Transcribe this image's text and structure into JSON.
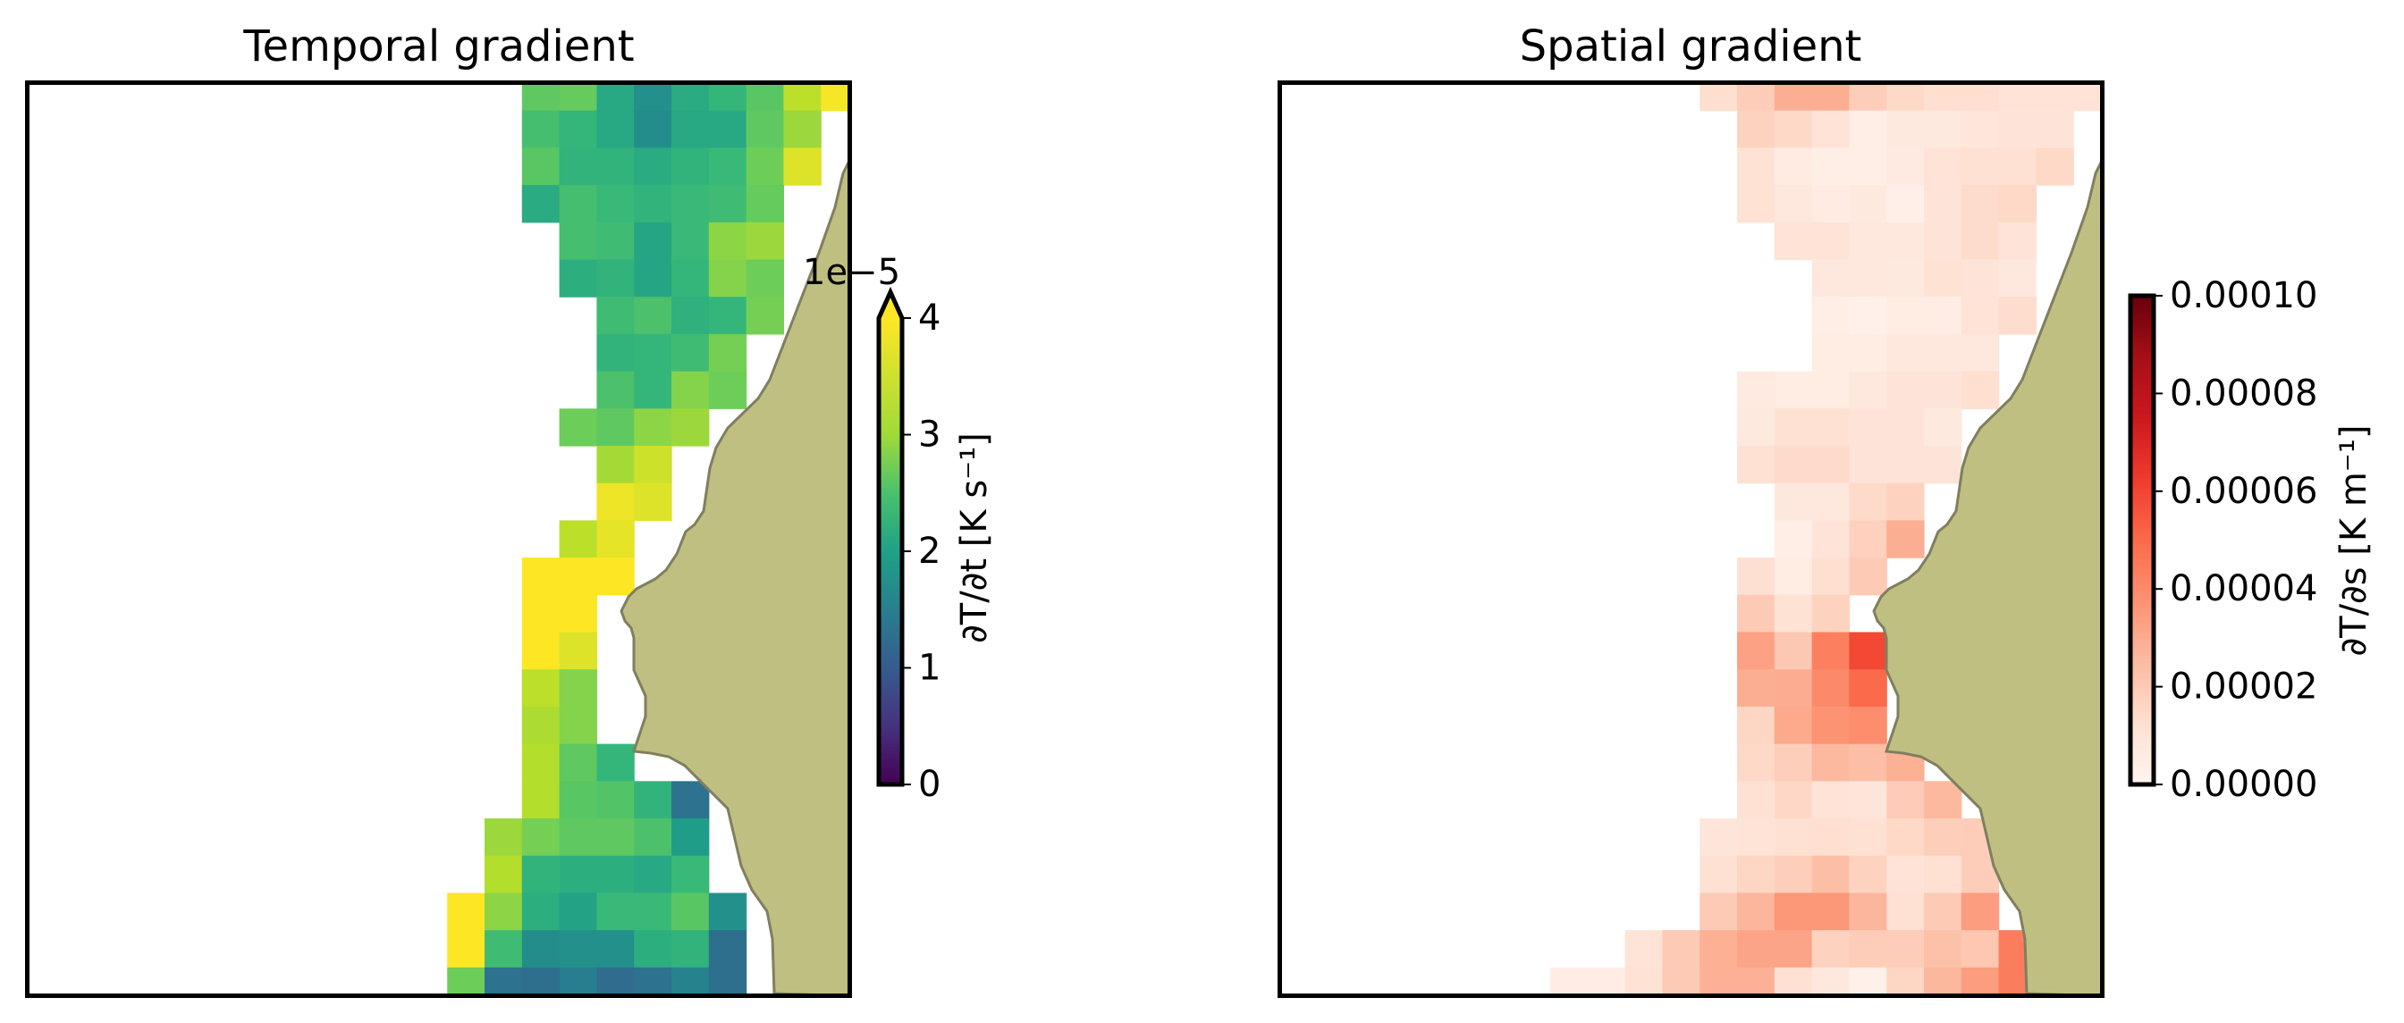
{
  "chart_data": [
    {
      "type": "heatmap",
      "title": "Temporal gradient",
      "colormap": "viridis",
      "vmin": 0,
      "vmax": 4,
      "units_multiplier": 1e-05,
      "extend": "max",
      "colorbar": {
        "label": "∂T/∂t [K s⁻¹]",
        "offset_label": "1e−5",
        "ticks": [
          0,
          1,
          2,
          3,
          4
        ],
        "tick_labels": [
          "0",
          "1",
          "2",
          "3",
          "4"
        ],
        "placement": "right"
      },
      "land_color": "#bfbf82",
      "grid": [
        [
          null,
          null,
          null,
          null,
          null,
          null,
          3.0,
          3.05,
          2.4,
          2.0,
          2.45,
          2.65,
          2.95,
          3.6,
          3.95
        ],
        [
          null,
          null,
          null,
          null,
          null,
          null,
          2.8,
          2.65,
          2.4,
          1.95,
          2.4,
          2.4,
          3.0,
          3.4,
          null
        ],
        [
          null,
          null,
          null,
          null,
          null,
          null,
          2.95,
          2.6,
          2.6,
          2.45,
          2.6,
          2.7,
          3.1,
          3.8,
          null
        ],
        [
          null,
          null,
          null,
          null,
          null,
          null,
          2.45,
          2.8,
          2.7,
          2.6,
          2.7,
          2.75,
          3.05,
          null,
          null
        ],
        [
          null,
          null,
          null,
          null,
          null,
          null,
          null,
          2.8,
          2.75,
          2.35,
          2.7,
          3.3,
          3.4,
          null,
          null
        ],
        [
          null,
          null,
          null,
          null,
          null,
          null,
          null,
          2.5,
          2.6,
          2.35,
          2.65,
          3.25,
          3.1,
          null,
          null
        ],
        [
          null,
          null,
          null,
          null,
          null,
          null,
          null,
          null,
          2.75,
          2.85,
          2.55,
          2.65,
          3.15,
          null,
          null
        ],
        [
          null,
          null,
          null,
          null,
          null,
          null,
          null,
          null,
          2.6,
          2.65,
          2.75,
          3.15,
          null,
          null,
          null
        ],
        [
          null,
          null,
          null,
          null,
          null,
          null,
          null,
          null,
          2.85,
          2.65,
          3.25,
          3.1,
          null,
          null,
          null
        ],
        [
          null,
          null,
          null,
          null,
          null,
          null,
          null,
          3.1,
          3.0,
          3.3,
          3.4,
          null,
          null,
          null,
          null
        ],
        [
          null,
          null,
          null,
          null,
          null,
          null,
          null,
          null,
          3.45,
          3.7,
          null,
          null,
          null,
          null,
          null
        ],
        [
          null,
          null,
          null,
          null,
          null,
          null,
          null,
          null,
          3.9,
          3.8,
          null,
          null,
          null,
          null,
          null
        ],
        [
          null,
          null,
          null,
          null,
          null,
          null,
          null,
          3.6,
          3.85,
          null,
          null,
          null,
          null,
          null,
          null
        ],
        [
          null,
          null,
          null,
          null,
          null,
          null,
          4.5,
          4.5,
          4.5,
          null,
          null,
          null,
          null,
          null,
          null
        ],
        [
          null,
          null,
          null,
          null,
          null,
          null,
          4.5,
          4.5,
          null,
          null,
          null,
          null,
          null,
          null,
          null
        ],
        [
          null,
          null,
          null,
          null,
          null,
          null,
          4.5,
          3.8,
          null,
          null,
          null,
          null,
          null,
          null,
          null
        ],
        [
          null,
          null,
          null,
          null,
          null,
          null,
          3.6,
          3.25,
          null,
          null,
          null,
          null,
          null,
          null,
          null
        ],
        [
          null,
          null,
          null,
          null,
          null,
          null,
          3.5,
          3.25,
          null,
          null,
          null,
          null,
          null,
          null,
          null
        ],
        [
          null,
          null,
          null,
          null,
          null,
          null,
          3.55,
          3.0,
          2.65,
          null,
          null,
          null,
          null,
          null,
          null
        ],
        [
          null,
          null,
          null,
          null,
          null,
          null,
          3.55,
          2.95,
          2.9,
          2.6,
          1.5,
          null,
          null,
          null,
          null
        ],
        [
          null,
          null,
          null,
          null,
          null,
          3.4,
          3.15,
          3.0,
          3.0,
          2.85,
          2.2,
          null,
          null,
          null,
          null
        ],
        [
          null,
          null,
          null,
          null,
          null,
          3.55,
          2.6,
          2.5,
          2.5,
          2.4,
          2.7,
          null,
          null,
          null,
          null
        ],
        [
          null,
          null,
          null,
          null,
          4.5,
          3.3,
          2.5,
          2.3,
          2.7,
          2.7,
          2.95,
          2.0,
          null,
          null,
          null
        ],
        [
          null,
          null,
          null,
          null,
          4.5,
          2.75,
          1.95,
          2.0,
          2.0,
          2.5,
          2.6,
          1.45,
          null,
          null,
          null
        ],
        [
          null,
          null,
          null,
          null,
          3.1,
          1.5,
          1.45,
          1.7,
          1.4,
          1.5,
          1.8,
          1.45,
          null,
          null,
          null
        ]
      ]
    },
    {
      "type": "heatmap",
      "title": "Spatial gradient",
      "colormap": "Reds",
      "vmin": 0,
      "vmax": 10,
      "units_multiplier": 1e-05,
      "colorbar": {
        "label": "∂T/∂s [K m⁻¹]",
        "ticks": [
          0,
          2,
          4,
          6,
          8,
          10
        ],
        "tick_labels": [
          "0.00000",
          "0.00002",
          "0.00004",
          "0.00006",
          "0.00008",
          "0.00010"
        ],
        "placement": "right"
      },
      "land_color": "#bfbf82",
      "grid": [
        [
          null,
          null,
          null,
          null,
          1.3,
          1.9,
          2.9,
          2.9,
          1.9,
          1.5,
          1.3,
          1.3,
          1.1,
          1.1,
          1.1
        ],
        [
          null,
          null,
          null,
          null,
          null,
          1.7,
          1.5,
          1.1,
          0.4,
          0.7,
          0.7,
          0.9,
          1.0,
          1.0,
          null
        ],
        [
          null,
          null,
          null,
          null,
          null,
          1.15,
          0.6,
          0.4,
          0.4,
          0.65,
          1.1,
          1.2,
          1.2,
          1.5,
          null
        ],
        [
          null,
          null,
          null,
          null,
          null,
          1.15,
          0.8,
          0.6,
          0.7,
          0.35,
          1.0,
          1.4,
          1.5,
          null,
          null
        ],
        [
          null,
          null,
          null,
          null,
          null,
          null,
          1.1,
          1.1,
          0.75,
          0.75,
          1.0,
          1.4,
          1.0,
          null,
          null
        ],
        [
          null,
          null,
          null,
          null,
          null,
          null,
          null,
          0.75,
          0.75,
          0.7,
          1.15,
          1.0,
          0.75,
          null,
          null
        ],
        [
          null,
          null,
          null,
          null,
          null,
          null,
          null,
          0.4,
          0.25,
          0.5,
          0.45,
          1.1,
          1.35,
          null,
          null
        ],
        [
          null,
          null,
          null,
          null,
          null,
          null,
          null,
          0.5,
          0.5,
          0.75,
          0.75,
          0.75,
          null,
          null,
          null
        ],
        [
          null,
          null,
          null,
          null,
          null,
          0.65,
          0.5,
          0.5,
          0.75,
          1.0,
          1.0,
          1.3,
          null,
          null,
          null
        ],
        [
          null,
          null,
          null,
          null,
          null,
          0.7,
          1.2,
          1.2,
          1.0,
          1.0,
          0.7,
          null,
          null,
          null,
          null
        ],
        [
          null,
          null,
          null,
          null,
          null,
          1.2,
          1.45,
          1.45,
          1.0,
          1.0,
          1.0,
          null,
          null,
          null,
          null
        ],
        [
          null,
          null,
          null,
          null,
          null,
          null,
          0.75,
          0.75,
          1.45,
          1.7,
          null,
          null,
          null,
          null,
          null
        ],
        [
          null,
          null,
          null,
          null,
          null,
          null,
          0.4,
          1.0,
          1.75,
          2.9,
          null,
          null,
          null,
          null,
          null
        ],
        [
          null,
          null,
          null,
          null,
          null,
          1.25,
          0.5,
          1.3,
          2.0,
          null,
          null,
          null,
          null,
          null,
          null
        ],
        [
          null,
          null,
          null,
          null,
          null,
          2.0,
          1.15,
          1.7,
          null,
          null,
          null,
          null,
          null,
          null,
          null
        ],
        [
          null,
          null,
          null,
          null,
          null,
          3.3,
          2.05,
          4.3,
          5.9,
          null,
          null,
          null,
          null,
          null,
          null
        ],
        [
          null,
          null,
          null,
          null,
          null,
          2.9,
          2.95,
          4.0,
          5.0,
          null,
          null,
          null,
          null,
          null,
          null
        ],
        [
          null,
          null,
          null,
          null,
          null,
          1.6,
          3.05,
          3.7,
          3.9,
          null,
          null,
          null,
          null,
          null,
          null
        ],
        [
          null,
          null,
          null,
          null,
          null,
          1.5,
          1.85,
          2.55,
          2.4,
          2.85,
          null,
          null,
          null,
          null,
          null
        ],
        [
          null,
          null,
          null,
          null,
          null,
          1.2,
          1.55,
          1.1,
          0.95,
          1.95,
          2.55,
          null,
          null,
          null,
          null
        ],
        [
          null,
          null,
          null,
          null,
          0.95,
          1.05,
          1.2,
          1.3,
          1.2,
          1.5,
          1.85,
          1.9,
          null,
          null,
          null
        ],
        [
          null,
          null,
          null,
          null,
          1.2,
          1.6,
          1.85,
          2.4,
          1.7,
          1.1,
          1.2,
          1.9,
          null,
          null,
          null
        ],
        [
          null,
          null,
          null,
          null,
          2.0,
          2.65,
          3.6,
          3.6,
          2.65,
          1.2,
          2.0,
          3.4,
          null,
          null,
          null
        ],
        [
          null,
          null,
          1.05,
          2.0,
          2.85,
          3.2,
          3.2,
          1.7,
          1.9,
          1.9,
          2.3,
          2.1,
          4.4,
          null,
          null
        ],
        [
          0.45,
          0.45,
          1.15,
          2.0,
          2.8,
          2.8,
          1.2,
          0.8,
          0.3,
          1.6,
          2.6,
          3.4,
          4.4,
          null,
          null
        ]
      ]
    }
  ]
}
